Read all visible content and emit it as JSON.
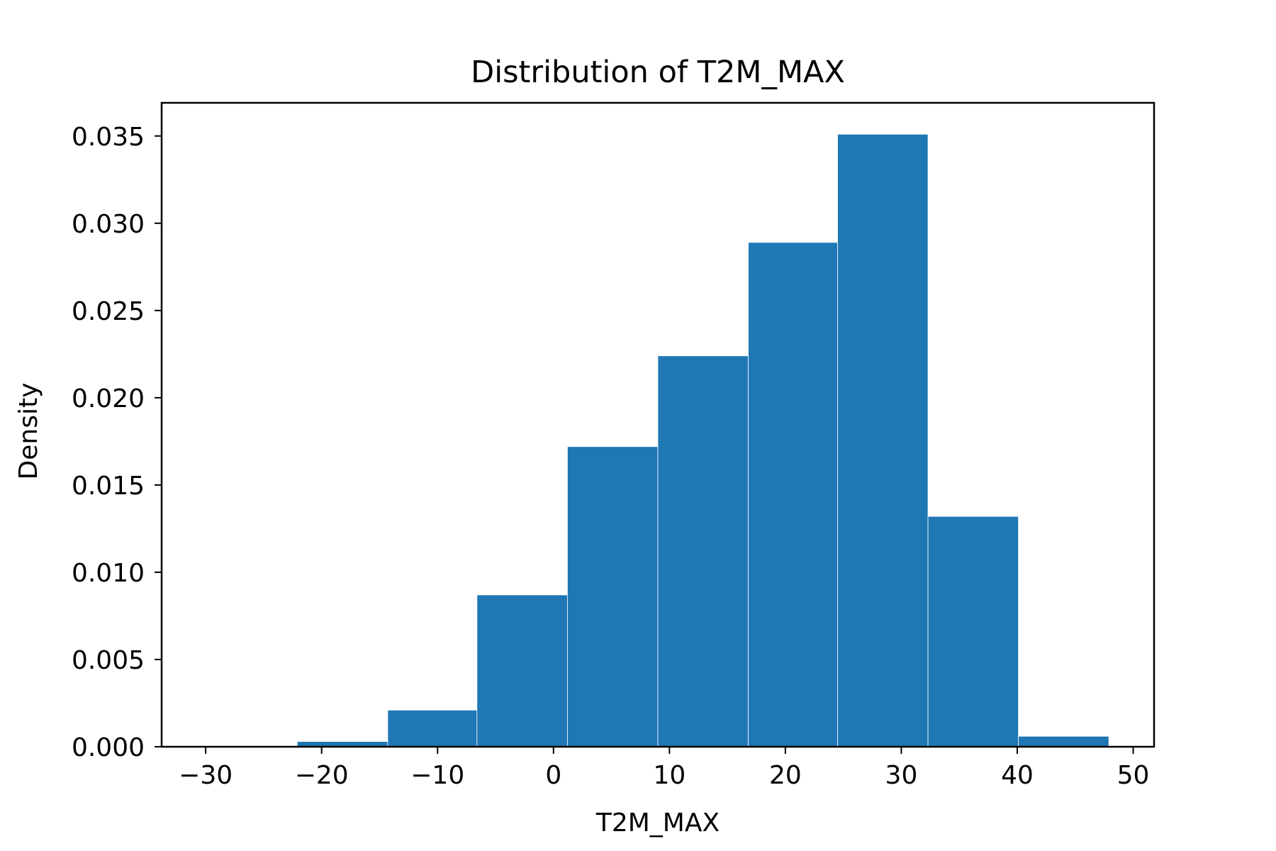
{
  "chart_data": {
    "type": "bar",
    "title": "Distribution of T2M_MAX",
    "xlabel": "T2M_MAX",
    "ylabel": "Density",
    "bin_edges": [
      -29.9,
      -22.1,
      -14.3,
      -6.6,
      1.2,
      9.0,
      16.8,
      24.5,
      32.3,
      40.1,
      47.9
    ],
    "values": [
      0.0,
      0.0003,
      0.0021,
      0.0087,
      0.0172,
      0.0224,
      0.0289,
      0.0351,
      0.0132,
      0.0006
    ],
    "xlim": [
      -33.8,
      51.8
    ],
    "ylim": [
      0,
      0.0369
    ],
    "xticks": [
      -30,
      -20,
      -10,
      0,
      10,
      20,
      30,
      40,
      50
    ],
    "xtick_labels": [
      "−30",
      "−20",
      "−10",
      "0",
      "10",
      "20",
      "30",
      "40",
      "50"
    ],
    "yticks": [
      0.0,
      0.005,
      0.01,
      0.015,
      0.02,
      0.025,
      0.03,
      0.035
    ],
    "ytick_labels": [
      "0.000",
      "0.005",
      "0.010",
      "0.015",
      "0.020",
      "0.025",
      "0.030",
      "0.035"
    ],
    "bar_color": "#1f77b4",
    "edge_color": "#ffffff",
    "grid": false,
    "legend": "none"
  }
}
